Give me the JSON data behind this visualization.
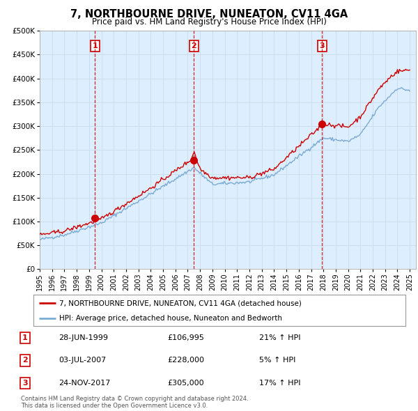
{
  "title": "7, NORTHBOURNE DRIVE, NUNEATON, CV11 4GA",
  "subtitle": "Price paid vs. HM Land Registry's House Price Index (HPI)",
  "hpi_label": "HPI: Average price, detached house, Nuneaton and Bedworth",
  "price_label": "7, NORTHBOURNE DRIVE, NUNEATON, CV11 4GA (detached house)",
  "footer": "Contains HM Land Registry data © Crown copyright and database right 2024.\nThis data is licensed under the Open Government Licence v3.0.",
  "sales": [
    {
      "num": 1,
      "date": "28-JUN-1999",
      "price": 106995,
      "pct": "21%",
      "dir": "↑"
    },
    {
      "num": 2,
      "date": "03-JUL-2007",
      "price": 228000,
      "pct": "5%",
      "dir": "↑"
    },
    {
      "num": 3,
      "date": "24-NOV-2017",
      "price": 305000,
      "pct": "17%",
      "dir": "↑"
    }
  ],
  "sale_years": [
    1999.49,
    2007.5,
    2017.9
  ],
  "sale_prices": [
    106995,
    228000,
    305000
  ],
  "ylim": [
    0,
    500000
  ],
  "yticks": [
    0,
    50000,
    100000,
    150000,
    200000,
    250000,
    300000,
    350000,
    400000,
    450000,
    500000
  ],
  "price_color": "#cc0000",
  "hpi_color": "#7aabd4",
  "vline_color": "#cc0000",
  "grid_color": "#ccddee",
  "background_color": "#ffffff",
  "plot_bg_color": "#ddeeff"
}
